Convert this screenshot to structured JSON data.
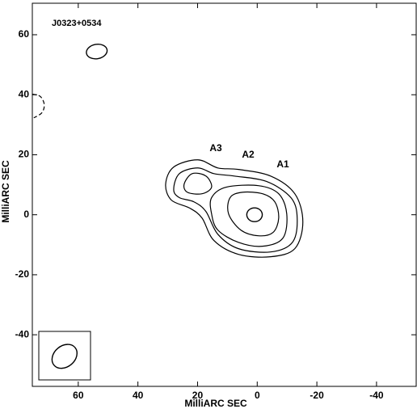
{
  "chart_data": {
    "type": "contour",
    "title": "J0323+0534",
    "x_label": "MilliARC SEC",
    "y_label": "MilliARC SEC",
    "xlim": [
      75.4,
      -53.3
    ],
    "ylim": [
      -57.2,
      70.5
    ],
    "xticks": [
      60,
      40,
      20,
      0,
      -20,
      -40
    ],
    "yticks": [
      60,
      40,
      20,
      0,
      -20,
      -40
    ],
    "annotations": [
      {
        "text": "A3"
      },
      {
        "text": "A2"
      },
      {
        "text": "A1"
      }
    ],
    "contours": [
      {
        "x": [
          9.1,
          5.0,
          -1.8,
          -5.9,
          -7.2,
          -5.3,
          -0.4,
          5.5,
          9.6
        ],
        "y": [
          5.7,
          7.5,
          7.0,
          4.3,
          -1.1,
          -5.9,
          -7.0,
          -5.1,
          0.3
        ],
        "dashed": false
      },
      {
        "x": [
          15.3,
          10.4,
          -0.4,
          -7.2,
          -9.9,
          -8.6,
          -1.8,
          6.3,
          13.2,
          15.3
        ],
        "y": [
          5.7,
          9.2,
          9.7,
          7.0,
          0.3,
          -7.8,
          -10.5,
          -9.2,
          -5.1,
          0.3
        ],
        "dashed": false
      },
      {
        "x": [
          24.5,
          21.8,
          17.2,
          15.3,
          18.5,
          23.4
        ],
        "y": [
          10.2,
          13.7,
          12.9,
          9.2,
          7.0,
          7.5
        ],
        "dashed": false
      },
      {
        "x": [
          28.0,
          26.1,
          19.9,
          14.5,
          7.7,
          -3.1,
          -11.3,
          -13.4,
          -11.8,
          -4.5,
          6.3,
          13.2,
          17.2,
          21.2,
          26.1
        ],
        "y": [
          8.4,
          13.7,
          15.6,
          13.7,
          12.9,
          11.1,
          5.7,
          -1.1,
          -9.2,
          -12.4,
          -11.3,
          -6.5,
          1.1,
          4.3,
          5.7
        ],
        "dashed": false
      },
      {
        "x": [
          30.7,
          28.0,
          19.9,
          13.2,
          6.3,
          -4.5,
          -12.6,
          -15.3,
          -12.6,
          -4.5,
          6.3,
          14.5,
          18.5,
          22.6,
          28.8
        ],
        "y": [
          10.2,
          15.9,
          18.3,
          15.6,
          15.1,
          12.9,
          7.0,
          -2.4,
          -11.3,
          -14.0,
          -13.2,
          -8.6,
          -1.1,
          2.2,
          4.9
        ],
        "dashed": false
      },
      {
        "x": [
          75.4,
          72.7,
          71.4,
          72.2,
          74.9
        ],
        "y": [
          40.2,
          39.4,
          36.7,
          34.0,
          32.3
        ],
        "dashed": true
      }
    ],
    "ellipses": [
      {
        "x": 0.9,
        "y": 0,
        "rx": 2.6,
        "ry": 2.3,
        "angle": 0
      },
      {
        "x": 53.8,
        "y": 54.4,
        "rx": 3.5,
        "ry": 2.4,
        "angle": 10
      },
      {
        "x": 64.6,
        "y": -47.2,
        "rx": 4.6,
        "ry": 3.5,
        "angle": 40
      }
    ]
  }
}
